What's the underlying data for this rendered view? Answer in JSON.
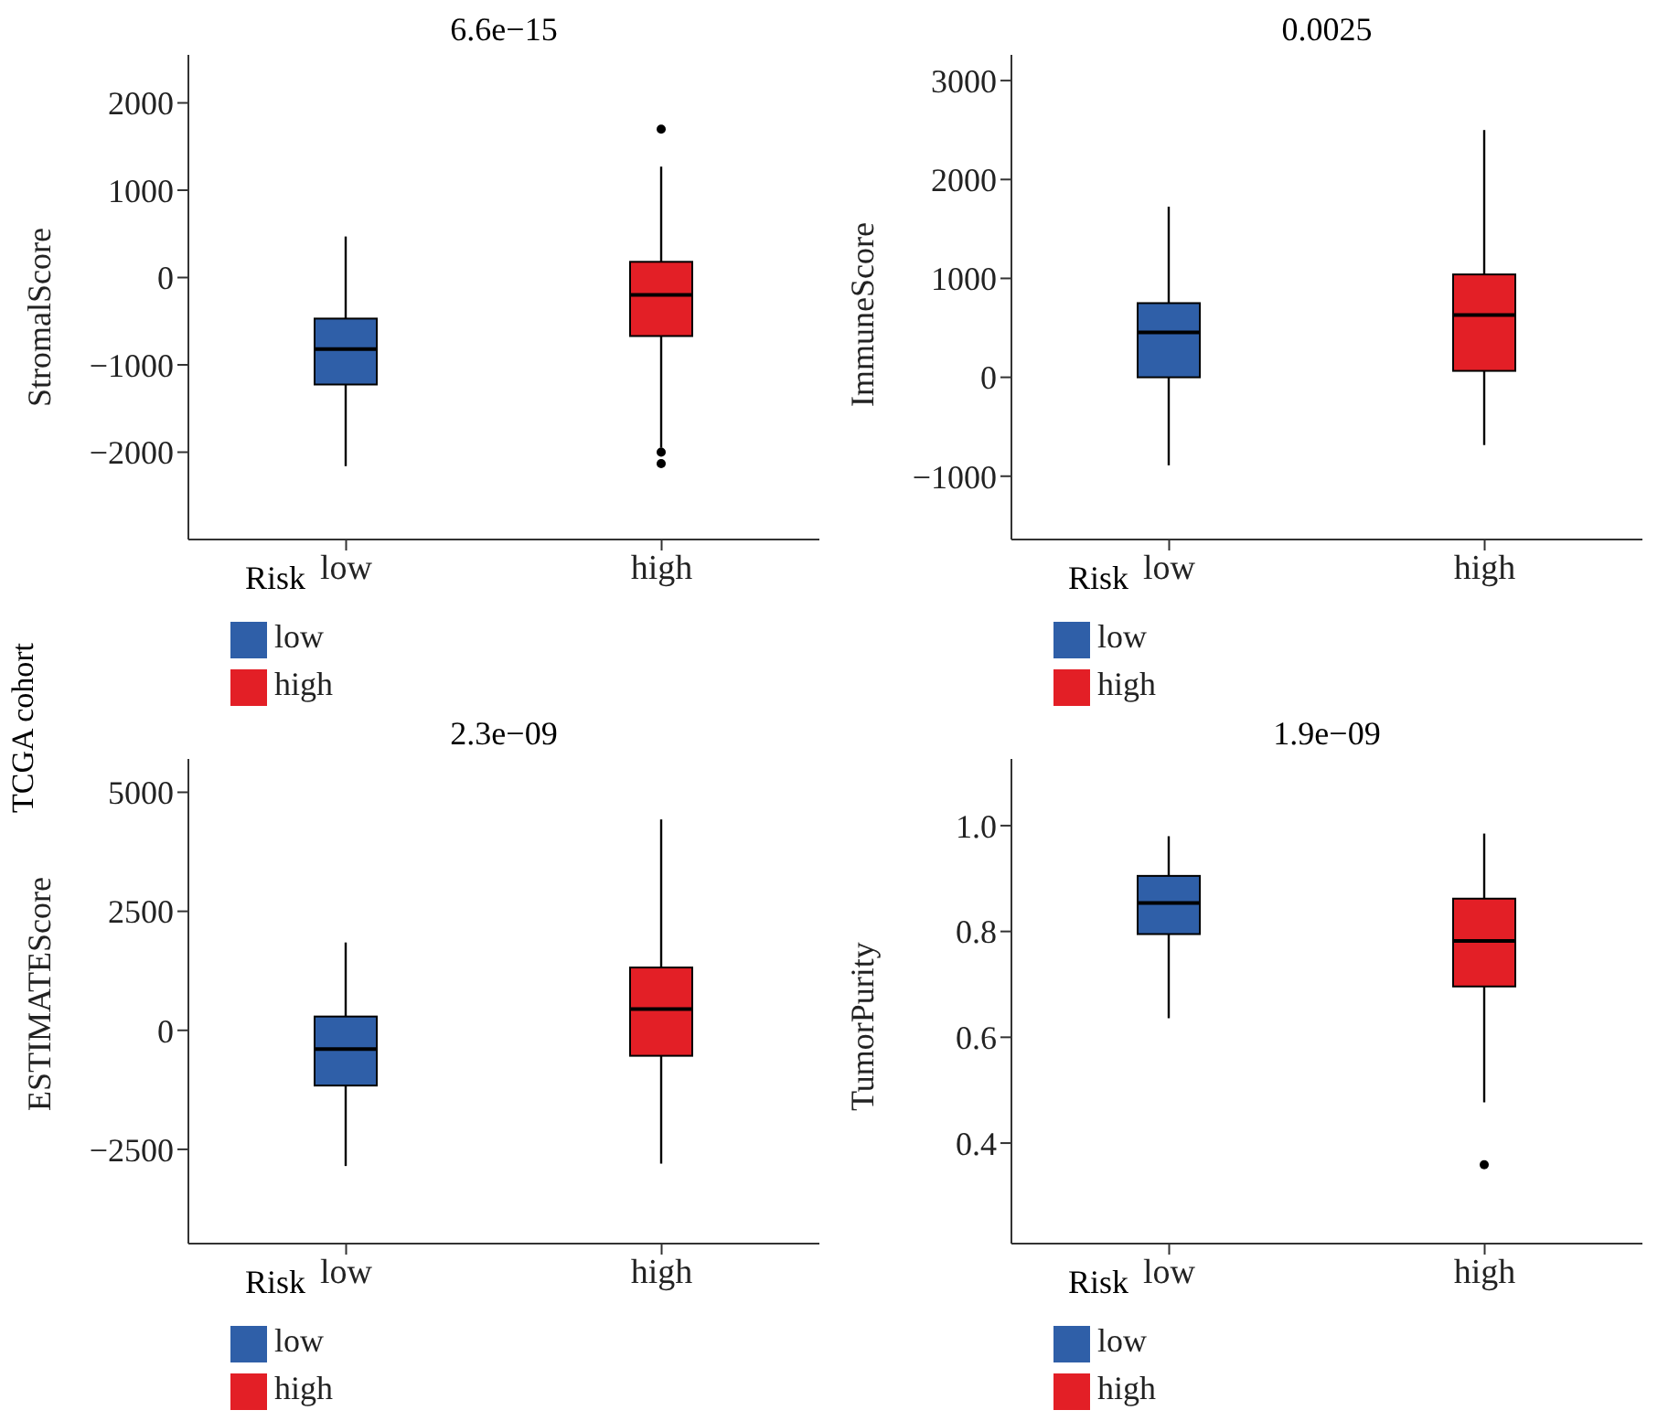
{
  "chart_data": [
    {
      "type": "box",
      "ylabel": "StromalScore",
      "legend_title": "Risk",
      "legend": "bottom left",
      "categories": [
        "low",
        "high"
      ],
      "ylim": [
        -3000,
        2550
      ],
      "yticks": [
        -2000,
        -1000,
        0,
        1000,
        2000
      ],
      "annotations": [
        "6.6e−15",
        "TCGA cohort"
      ],
      "series": [
        {
          "name": "low",
          "color": "#2f5fa8",
          "boxes": [
            {
              "low": -2160,
              "q1": -1225,
              "median": -820,
              "q3": -470,
              "high": 470
            },
            null
          ]
        },
        {
          "name": "high",
          "color": "#e31f26",
          "boxes": [
            null,
            {
              "low": -1950,
              "q1": -670,
              "median": -200,
              "q3": 180,
              "high": 1270,
              "outliers": [
                1700,
                -2000,
                -2130
              ]
            }
          ]
        }
      ]
    },
    {
      "type": "box",
      "ylabel": "ImmuneScore",
      "legend_title": "Risk",
      "legend": "bottom left",
      "categories": [
        "low",
        "high"
      ],
      "ylim": [
        -1640,
        3260
      ],
      "yticks": [
        -1000,
        0,
        1000,
        2000,
        3000
      ],
      "annotations": [
        "0.0025"
      ],
      "series": [
        {
          "name": "low",
          "color": "#2f5fa8",
          "boxes": [
            {
              "low": -890,
              "q1": 0,
              "median": 455,
              "q3": 750,
              "high": 1725
            },
            null
          ]
        },
        {
          "name": "high",
          "color": "#e31f26",
          "boxes": [
            null,
            {
              "low": -685,
              "q1": 65,
              "median": 630,
              "q3": 1040,
              "high": 2500
            }
          ]
        }
      ]
    },
    {
      "type": "box",
      "ylabel": "ESTIMATEScore",
      "legend_title": "Risk",
      "legend": "bottom left",
      "categories": [
        "low",
        "high"
      ],
      "ylim": [
        -4480,
        5700
      ],
      "yticks": [
        -2500,
        0,
        2500,
        5000
      ],
      "annotations": [
        "2.3e−09"
      ],
      "series": [
        {
          "name": "low",
          "color": "#2f5fa8",
          "boxes": [
            {
              "low": -2850,
              "q1": -1160,
              "median": -395,
              "q3": 290,
              "high": 1845
            },
            null
          ]
        },
        {
          "name": "high",
          "color": "#e31f26",
          "boxes": [
            null,
            {
              "low": -2800,
              "q1": -535,
              "median": 445,
              "q3": 1320,
              "high": 4430
            }
          ]
        }
      ]
    },
    {
      "type": "box",
      "ylabel": "TumorPurity",
      "legend_title": "Risk",
      "legend": "bottom left",
      "categories": [
        "low",
        "high"
      ],
      "ylim": [
        0.21,
        1.126
      ],
      "yticks": [
        {
          "value": 0.4,
          "label": "0.4"
        },
        {
          "value": 0.6,
          "label": "0.6"
        },
        {
          "value": 0.8,
          "label": "0.8"
        },
        {
          "value": 1,
          "label": "1.0"
        }
      ],
      "annotations": [
        "1.9e−09"
      ],
      "series": [
        {
          "name": "low",
          "color": "#2f5fa8",
          "boxes": [
            {
              "low": 0.636,
              "q1": 0.795,
              "median": 0.854,
              "q3": 0.905,
              "high": 0.98
            },
            null
          ]
        },
        {
          "name": "high",
          "color": "#e31f26",
          "boxes": [
            null,
            {
              "low": 0.477,
              "q1": 0.696,
              "median": 0.782,
              "q3": 0.862,
              "high": 0.985,
              "outliers": [
                0.359
              ]
            }
          ]
        }
      ]
    }
  ]
}
